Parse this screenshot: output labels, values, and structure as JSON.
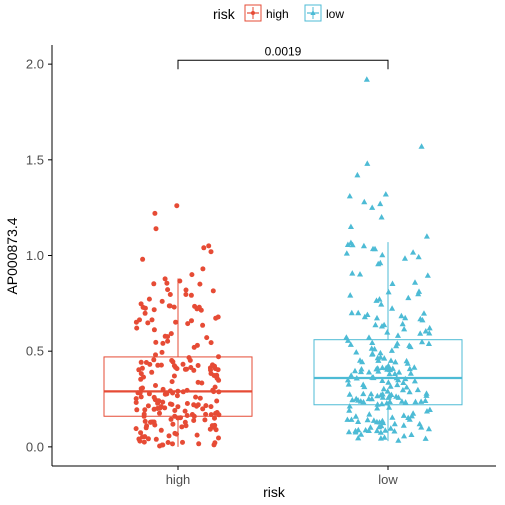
{
  "chart_data": {
    "type": "boxplot",
    "xlabel": "risk",
    "ylabel": "AP000873.4",
    "ylim": [
      -0.1,
      2.1
    ],
    "yticks": [
      0.0,
      0.5,
      1.0,
      1.5,
      2.0
    ],
    "ytick_labels": [
      "0.0",
      "0.5",
      "1.0",
      "1.5",
      "2.0"
    ],
    "categories": [
      "high",
      "low"
    ],
    "legend": {
      "title": "risk",
      "position": "top",
      "entries": [
        "high",
        "low"
      ]
    },
    "series": [
      {
        "name": "high",
        "color": "#E64B35",
        "marker": "circle",
        "box": {
          "whisker_low": 0.0,
          "q1": 0.16,
          "median": 0.29,
          "q3": 0.47,
          "whisker_high": 0.88
        },
        "outliers": [
          1.26,
          1.22,
          1.14,
          1.05,
          1.04,
          1.02,
          0.98,
          0.93,
          0.9
        ],
        "points_count": 200
      },
      {
        "name": "low",
        "color": "#4DBBD5",
        "marker": "triangle",
        "box": {
          "whisker_low": 0.03,
          "q1": 0.22,
          "median": 0.36,
          "q3": 0.56,
          "whisker_high": 1.07
        },
        "outliers": [
          1.92,
          1.57,
          1.48,
          1.42,
          1.32,
          1.31,
          1.28,
          1.27,
          1.25,
          1.2,
          1.15,
          1.1
        ],
        "points_count": 200
      }
    ],
    "comparison": {
      "label": "0.0019",
      "y": 2.02
    }
  }
}
